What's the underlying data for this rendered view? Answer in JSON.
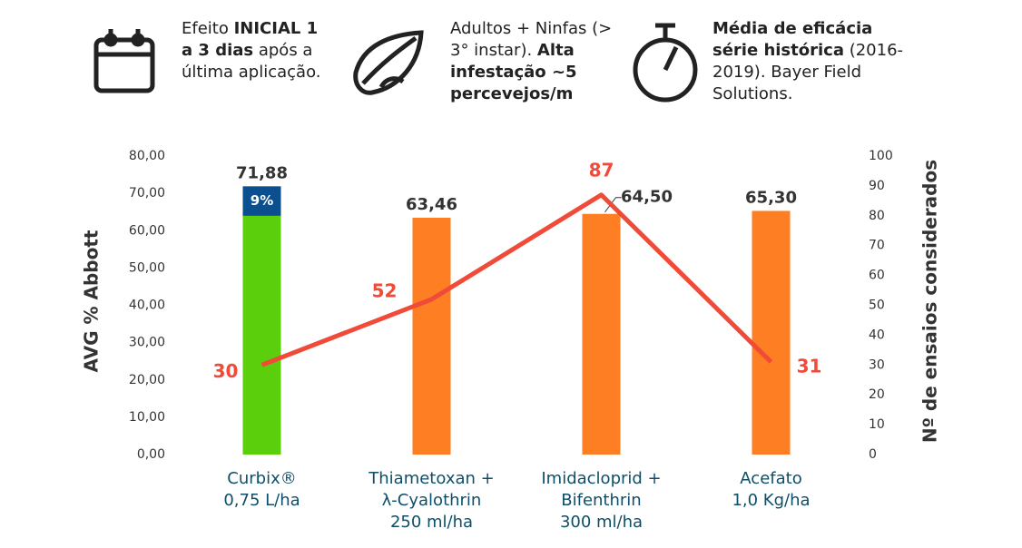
{
  "header": [
    {
      "parts": [
        {
          "text": "Efeito ",
          "bold": false
        },
        {
          "text": "INICIAL 1 a 3 dias",
          "bold": true
        },
        {
          "text": " após a última aplicação.",
          "bold": false
        }
      ]
    },
    {
      "parts": [
        {
          "text": "Adultos + Ninfas (> 3° instar). ",
          "bold": false
        },
        {
          "text": "Alta infestação ~5 percevejos/m",
          "bold": true
        }
      ]
    },
    {
      "parts": [
        {
          "text": "Média de eficácia série histórica",
          "bold": true
        },
        {
          "text": " (2016-2019). Bayer Field Solutions.",
          "bold": false
        }
      ]
    }
  ],
  "chart_data": {
    "type": "bar-line",
    "ylabel": "AVG % Abbott",
    "y2label": "Nº de ensaios considerados",
    "categories": [
      [
        "Curbix®",
        "0,75 L/ha"
      ],
      [
        "Thiametoxan +",
        "λ-Cyalothrin",
        "250 ml/ha"
      ],
      [
        "Imidacloprid +",
        "Bifenthrin",
        "300 ml/ha"
      ],
      [
        "Acefato",
        "1,0 Kg/ha"
      ]
    ],
    "series": [
      {
        "type": "bar",
        "values": [
          71.88,
          63.46,
          64.5,
          65.3
        ],
        "value_labels": [
          "71,88",
          "63,46",
          "64,50",
          "65,30"
        ],
        "colors": [
          "#5ccf0c",
          "#fd7e23",
          "#fd7e23",
          "#fd7e23"
        ]
      },
      {
        "type": "line",
        "axis": "y2",
        "color": "#f04a38",
        "values": [
          30,
          52,
          87,
          31
        ]
      }
    ],
    "gain": {
      "category": 0,
      "value": 7.88,
      "label": "9%",
      "color": "#0b4f8f"
    },
    "ylim": [
      0,
      80
    ],
    "yticks": [
      {
        "value": 0,
        "label": "0,00"
      },
      {
        "value": 10,
        "label": "10,00"
      },
      {
        "value": 20,
        "label": "20,00"
      },
      {
        "value": 30,
        "label": "30,00"
      },
      {
        "value": 40,
        "label": "40,00"
      },
      {
        "value": 50,
        "label": "50,00"
      },
      {
        "value": 60,
        "label": "60,00"
      },
      {
        "value": 70,
        "label": "70,00"
      },
      {
        "value": 80,
        "label": "80,00"
      }
    ],
    "y2lim": [
      0,
      100
    ],
    "y2ticks": [
      0,
      10,
      20,
      30,
      40,
      50,
      60,
      70,
      80,
      90,
      100
    ]
  }
}
